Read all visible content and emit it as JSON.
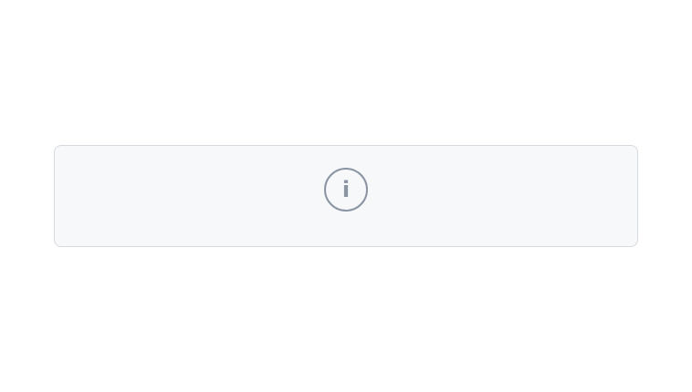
{
  "notice": {
    "title": "",
    "body": ""
  }
}
